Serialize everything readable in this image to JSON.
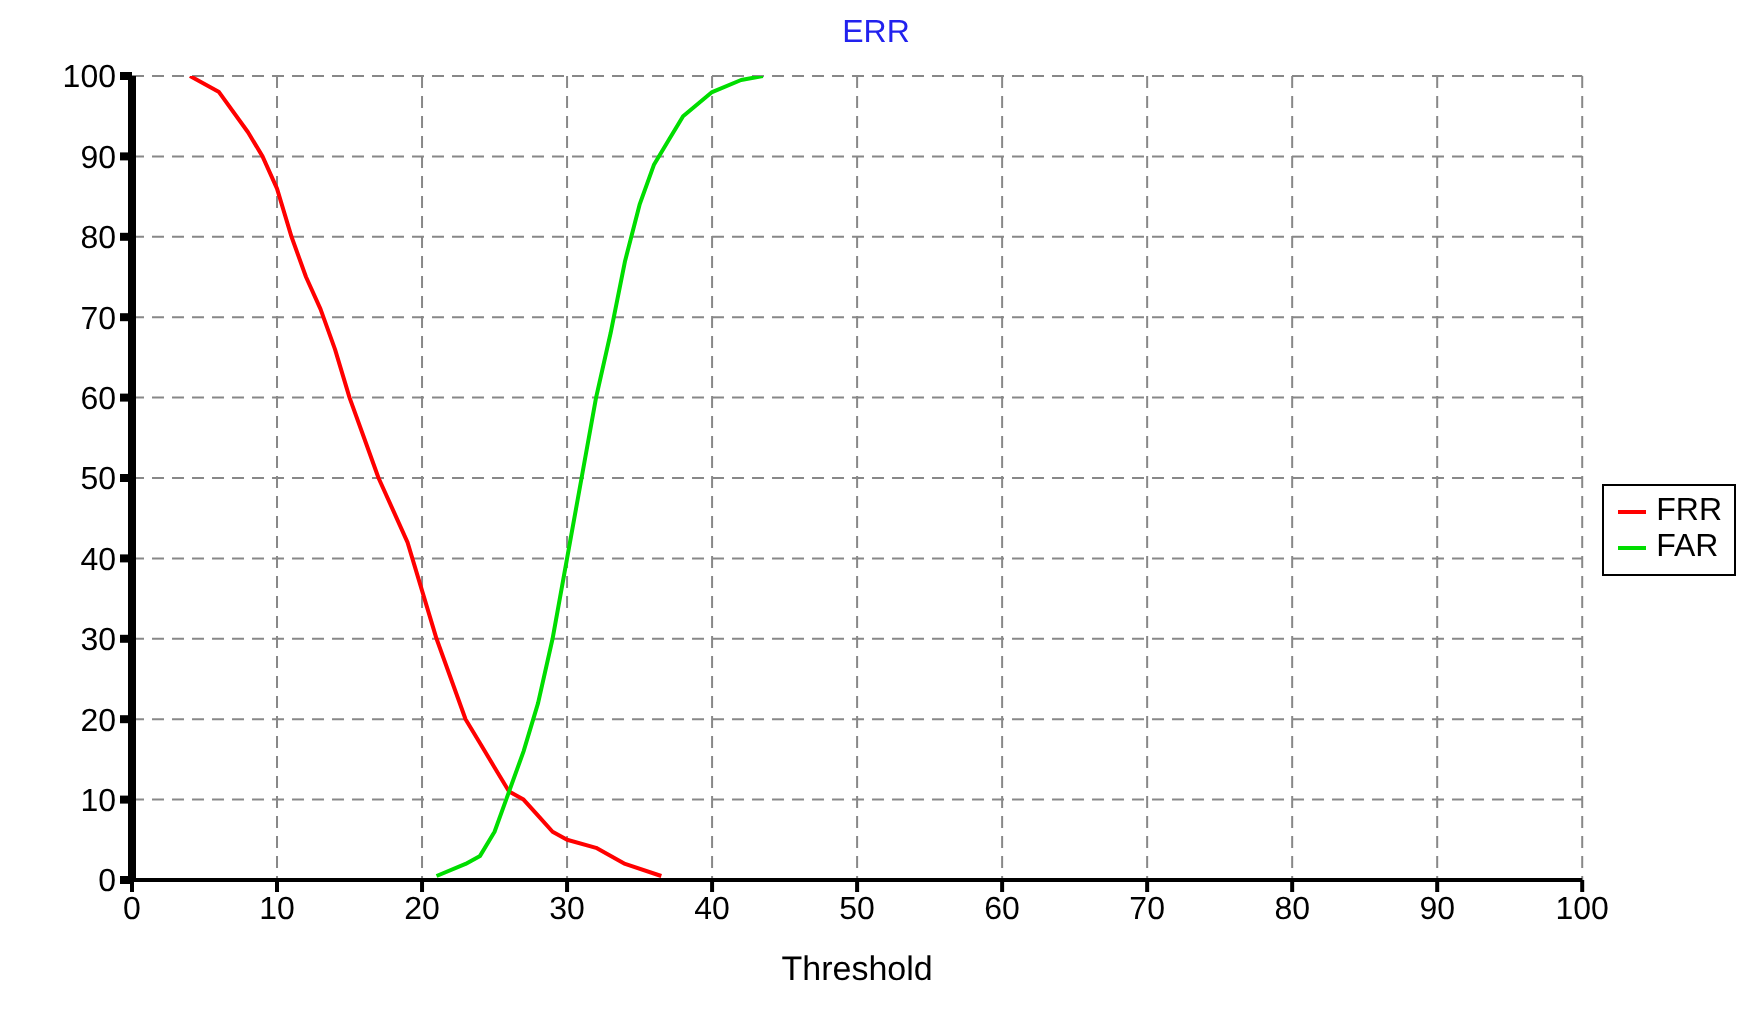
{
  "chart_data": {
    "type": "line",
    "title": "ERR",
    "xlabel": "Threshold",
    "xlim": [
      0,
      100
    ],
    "xticks": [
      0,
      10,
      20,
      30,
      40,
      50,
      60,
      70,
      80,
      90,
      100
    ],
    "ylim": [
      0,
      100
    ],
    "yticks": [
      0,
      10,
      20,
      30,
      40,
      50,
      60,
      70,
      80,
      90,
      100
    ],
    "grid": true,
    "legend": "right",
    "marker": "none",
    "line_style": "solid",
    "series": [
      {
        "name": "FRR",
        "color": "#ff0000",
        "x": [
          4,
          6,
          8,
          9,
          10,
          11,
          12,
          13,
          14,
          15,
          16,
          17,
          18,
          19,
          20,
          21,
          22,
          23,
          24,
          25,
          26,
          27,
          28,
          29,
          30,
          32,
          34,
          36.5
        ],
        "values": [
          100,
          98,
          93,
          90,
          86,
          80,
          75,
          71,
          66,
          60,
          55,
          50,
          46,
          42,
          36,
          30,
          25,
          20,
          17,
          14,
          11,
          10,
          8,
          6,
          5,
          4,
          2,
          0.5
        ]
      },
      {
        "name": "FAR",
        "color": "#00dd00",
        "x": [
          21,
          23,
          24,
          25,
          26,
          27,
          28,
          29,
          30,
          31,
          32,
          33,
          34,
          35,
          36,
          37,
          38,
          40,
          42,
          43.5
        ],
        "values": [
          0.5,
          2,
          3,
          6,
          11,
          16,
          22,
          30,
          40,
          50,
          60,
          68,
          77,
          84,
          89,
          92,
          95,
          98,
          99.5,
          100
        ]
      }
    ]
  }
}
